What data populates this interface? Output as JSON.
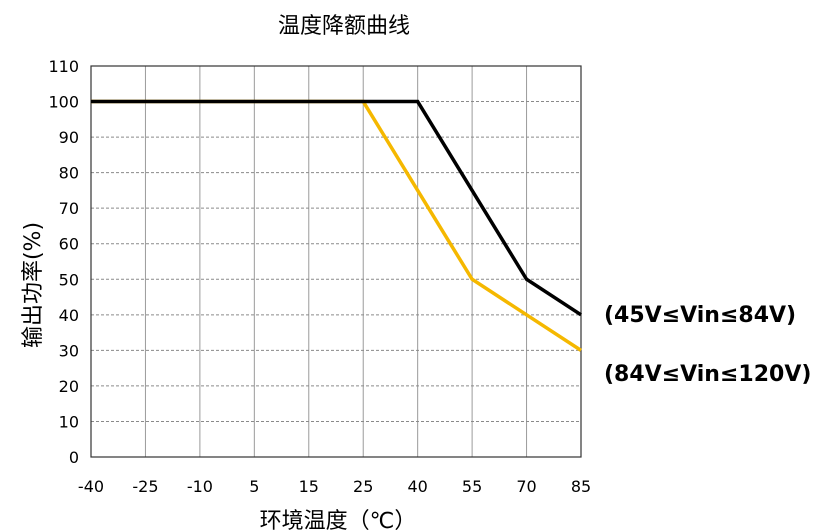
{
  "chart_data": {
    "type": "line",
    "title": "温度降额曲线",
    "xlabel": "环境温度（℃）",
    "ylabel": "输出功率(%)",
    "x_ticks": [
      "-40",
      "-25",
      "-10",
      "5",
      "15",
      "25",
      "40",
      "55",
      "70",
      "85"
    ],
    "y_ticks": [
      0,
      10,
      20,
      30,
      40,
      50,
      60,
      70,
      80,
      90,
      100,
      110
    ],
    "ylim": [
      0,
      110
    ],
    "grid": true,
    "series": [
      {
        "name": "(45V≤Vin≤84V)",
        "color": "#000000",
        "x": [
          -40,
          25,
          40,
          55,
          70,
          85
        ],
        "y": [
          100,
          100,
          100,
          75,
          50,
          40
        ]
      },
      {
        "name": "(84V≤Vin≤120V)",
        "color": "#F5B800",
        "x": [
          -40,
          25,
          40,
          55,
          70,
          85
        ],
        "y": [
          100,
          100,
          75,
          50,
          40,
          30
        ]
      }
    ]
  }
}
